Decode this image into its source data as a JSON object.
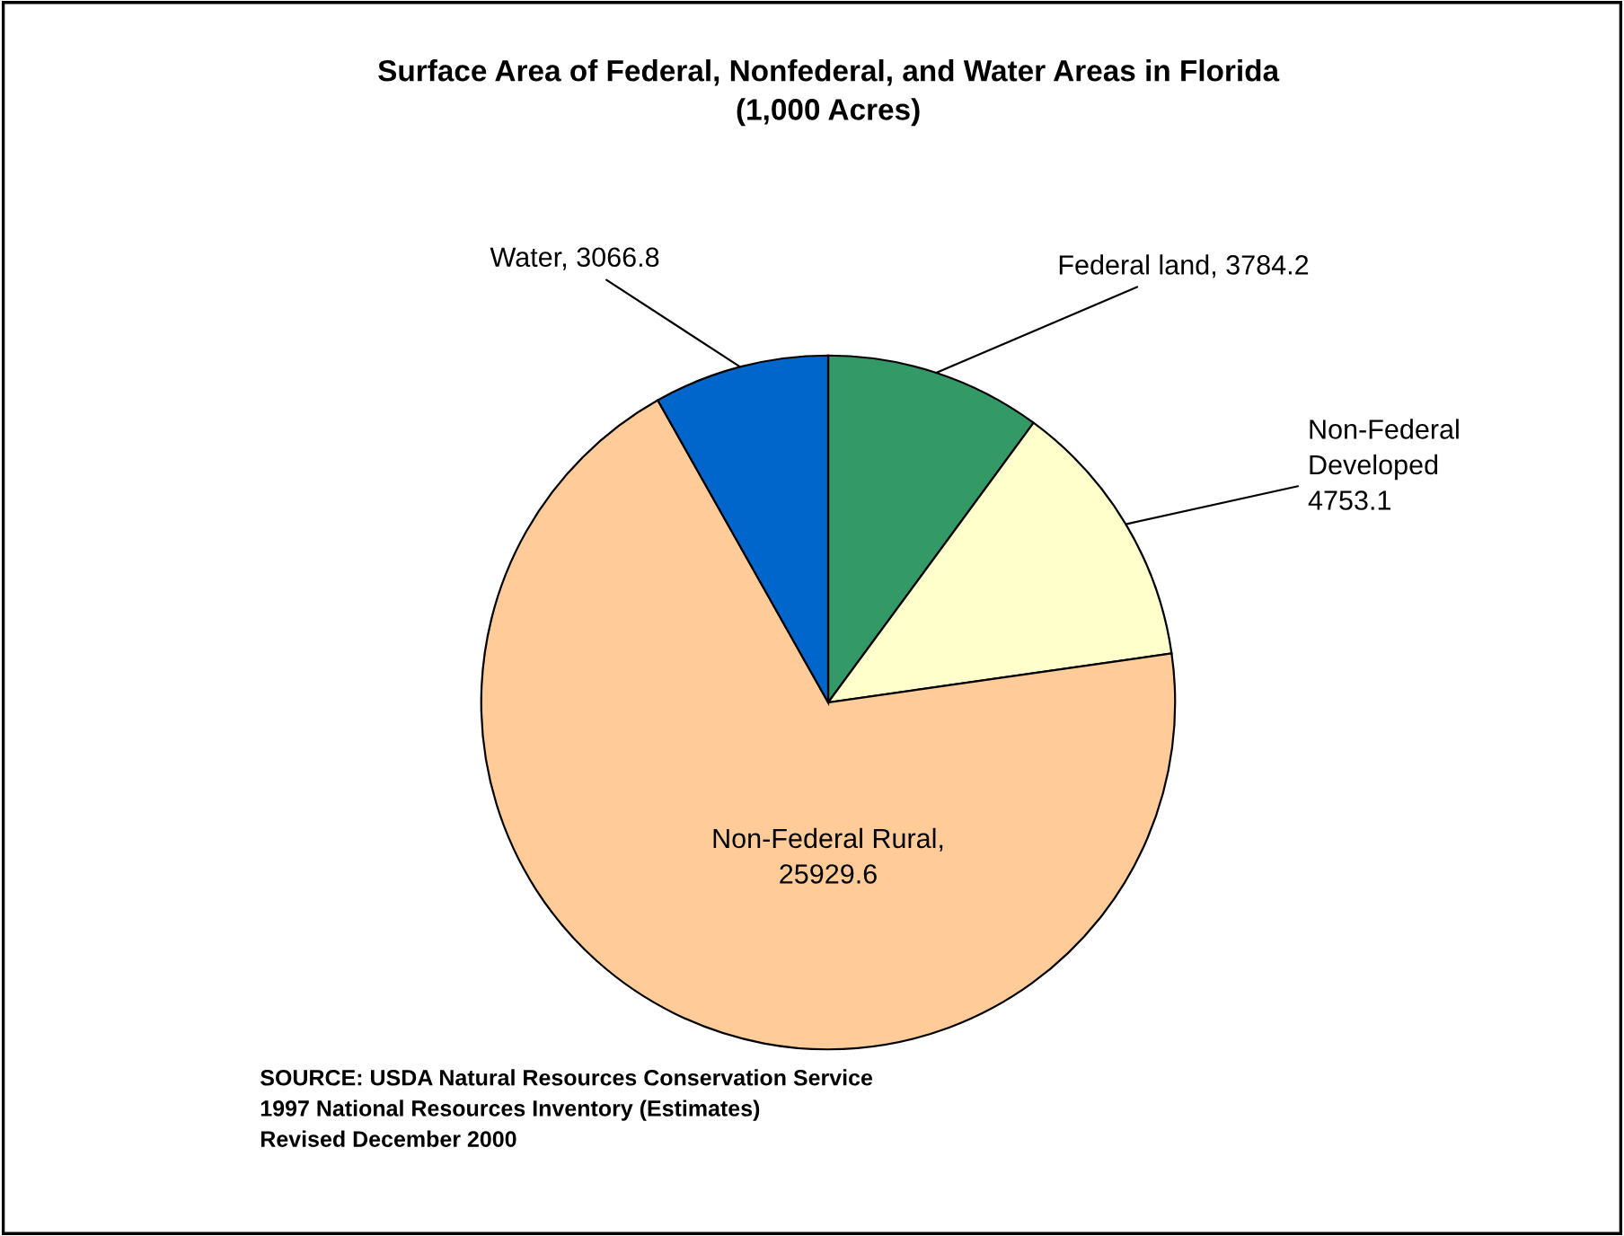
{
  "chart_data": {
    "type": "pie",
    "title": "Surface Area of Federal, Nonfederal, and Water Areas in Florida\n(1,000 Acres)",
    "categories": [
      "Federal land, 3784.2",
      "Non-Federal\nDeveloped\n4753.1",
      "Non-Federal Rural,\n25929.6",
      "Water, 3066.8"
    ],
    "values": [
      3784.2,
      4753.1,
      25929.6,
      3066.8
    ],
    "colors": [
      "#339966",
      "#ffffcc",
      "#ffcc99",
      "#0066cc"
    ],
    "legend": false,
    "annotations": [
      "SOURCE: USDA Natural Resources Conservation Service\n1997 National Resources Inventory (Estimates)\nRevised December 2000"
    ]
  }
}
